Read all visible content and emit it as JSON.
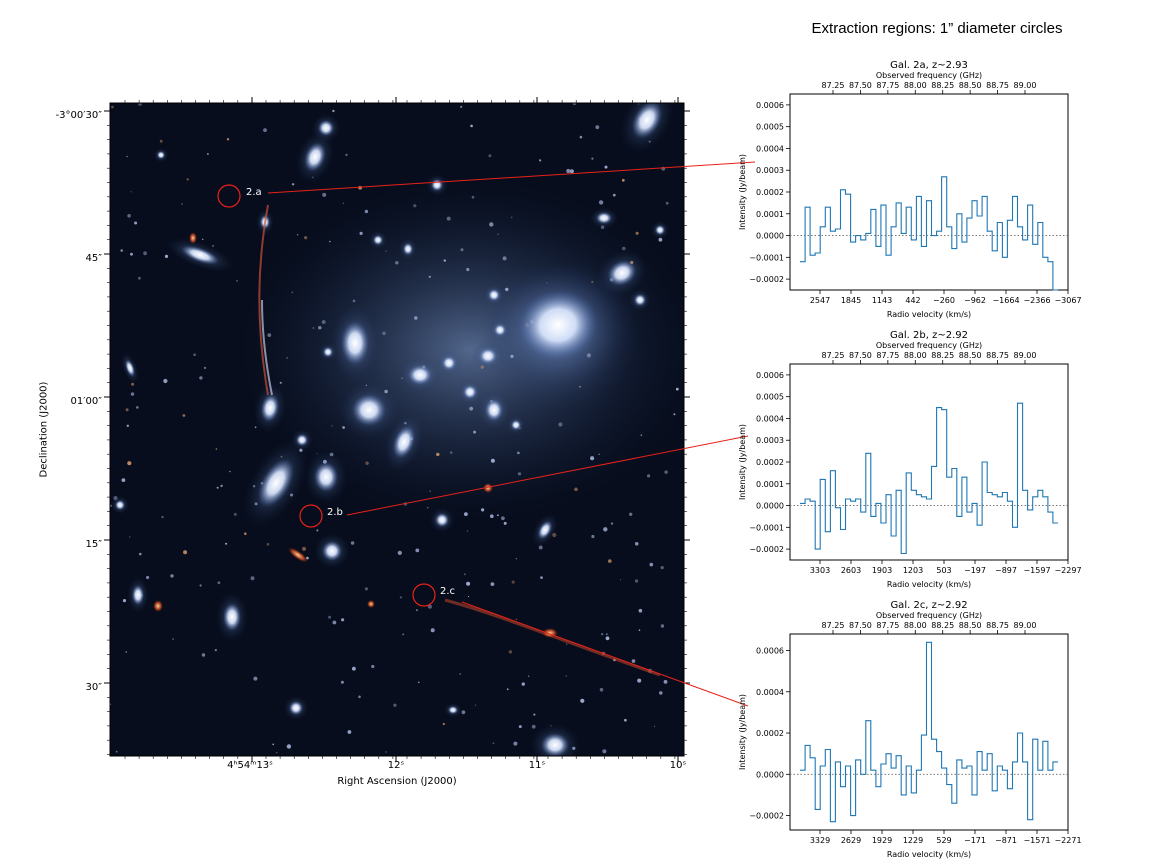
{
  "figure": {
    "title": "Extraction regions: 1” diameter circles"
  },
  "image_panel": {
    "xlabel": "Right Ascension (J2000)",
    "ylabel": "Declination (J2000)",
    "x_ticks": [
      "4ʰ54ᵐ13ˢ",
      "12ˢ",
      "11ˢ",
      "10ˢ"
    ],
    "y_ticks": [
      "-3°00′30″",
      "45″",
      "01′00″",
      "15″",
      "30″"
    ],
    "regions": [
      {
        "label": "2.a",
        "color": "#e8221a"
      },
      {
        "label": "2.b",
        "color": "#e8221a"
      },
      {
        "label": "2.c",
        "color": "#e8221a"
      }
    ]
  },
  "chart_data": [
    {
      "type": "line",
      "drawstyle": "steps",
      "title": "Gal. 2a, z~2.93",
      "top_xlabel": "Observed frequency (GHz)",
      "top_ticks": [
        "87.25",
        "87.50",
        "87.75",
        "88.00",
        "88.25",
        "88.50",
        "88.75",
        "89.00"
      ],
      "xlabel": "Radio velocity (km/s)",
      "x_ticks": [
        "2547",
        "1845",
        "1143",
        "442",
        "−260",
        "−962",
        "−1664",
        "−2366",
        "−3067"
      ],
      "ylabel": "Intensity (Jy/beam)",
      "y_ticks": [
        "0.0006",
        "0.0005",
        "0.0004",
        "0.0003",
        "0.0002",
        "0.0001",
        "0.0000",
        "−0.0001",
        "−0.0002"
      ],
      "ylim": [
        -0.00025,
        0.00065
      ],
      "zero_line": true,
      "series_color": "#1f77b4",
      "series": [
        {
          "values": [
            -0.00012,
            0.00013,
            -9e-05,
            -8e-05,
            4e-05,
            0.00013,
            2e-05,
            3e-05,
            0.00021,
            0.00019,
            -3e-05,
            0.0,
            -2e-05,
            1e-05,
            0.00012,
            -5e-05,
            0.00014,
            -9e-05,
            4e-05,
            0.00015,
            1e-05,
            0.00013,
            -2e-05,
            0.00018,
            -5e-05,
            0.00016,
            0.0,
            2e-05,
            0.00027,
            4e-05,
            -6e-05,
            0.0001,
            -3e-05,
            8e-05,
            0.00016,
            9e-05,
            0.00018,
            2e-05,
            -7e-05,
            6e-05,
            -0.0001,
            7e-05,
            0.00018,
            4e-05,
            -2e-05,
            0.00014,
            -4e-05,
            6e-05,
            -0.0001,
            -0.00012,
            -0.00025
          ]
        }
      ]
    },
    {
      "type": "line",
      "drawstyle": "steps",
      "title": "Gal. 2b, z~2.92",
      "top_xlabel": "Observed frequency (GHz)",
      "top_ticks": [
        "87.25",
        "87.50",
        "87.75",
        "88.00",
        "88.25",
        "88.50",
        "88.75",
        "89.00"
      ],
      "xlabel": "Radio velocity (km/s)",
      "x_ticks": [
        "3303",
        "2603",
        "1903",
        "1203",
        "503",
        "−197",
        "−897",
        "−1597",
        "−2297"
      ],
      "ylabel": "Intensity (Jy/beam)",
      "y_ticks": [
        "0.0006",
        "0.0005",
        "0.0004",
        "0.0003",
        "0.0002",
        "0.0001",
        "0.0000",
        "−0.0001",
        "−0.0002"
      ],
      "ylim": [
        -0.00025,
        0.00065
      ],
      "zero_line": true,
      "series_color": "#1f77b4",
      "series": [
        {
          "values": [
            1e-05,
            3e-05,
            2e-05,
            -0.0002,
            0.00012,
            -0.00012,
            0.00016,
            -1e-05,
            -0.00011,
            3e-05,
            2e-05,
            3e-05,
            -3e-05,
            0.00024,
            -5e-05,
            1e-05,
            -8e-05,
            5e-05,
            -0.00014,
            7e-05,
            -0.00022,
            0.00015,
            7e-05,
            5e-05,
            4e-05,
            3e-05,
            0.00018,
            0.00045,
            0.00044,
            0.00013,
            0.00017,
            -5e-05,
            0.00013,
            -3e-05,
            1e-05,
            -9e-05,
            0.0002,
            6e-05,
            5e-05,
            4e-05,
            6e-05,
            2e-05,
            -0.0001,
            0.00047,
            7e-05,
            -2e-05,
            4e-05,
            7e-05,
            4e-05,
            -3e-05,
            -8e-05
          ]
        }
      ]
    },
    {
      "type": "line",
      "drawstyle": "steps",
      "title": "Gal. 2c, z~2.92",
      "top_xlabel": "Observed frequency (GHz)",
      "top_ticks": [
        "87.25",
        "87.50",
        "87.75",
        "88.00",
        "88.25",
        "88.50",
        "88.75",
        "89.00"
      ],
      "xlabel": "Radio velocity (km/s)",
      "x_ticks": [
        "3329",
        "2629",
        "1929",
        "1229",
        "529",
        "−171",
        "−871",
        "−1571",
        "−2271"
      ],
      "ylabel": "Intensity (Jy/beam)",
      "y_ticks": [
        "0.0006",
        "0.0004",
        "0.0002",
        "0.0000",
        "−0.0002"
      ],
      "ylim": [
        -0.00027,
        0.00068
      ],
      "zero_line": true,
      "series_color": "#1f77b4",
      "series": [
        {
          "values": [
            2e-05,
            0.00014,
            8e-05,
            -0.00017,
            4e-05,
            0.00012,
            -0.00023,
            6e-05,
            -6e-05,
            4e-05,
            -0.0002,
            7e-05,
            0.0,
            0.00026,
            2e-05,
            -6e-05,
            5e-05,
            0.0001,
            3e-05,
            9e-05,
            -0.0001,
            4e-05,
            -9e-05,
            2e-05,
            0.00019,
            0.00064,
            0.00017,
            0.00011,
            3e-05,
            -5e-05,
            -0.00014,
            7e-05,
            3e-05,
            4e-05,
            -0.0001,
            0.00011,
            2e-05,
            0.0001,
            -8e-05,
            4e-05,
            2e-05,
            -7e-05,
            6e-05,
            0.0002,
            6e-05,
            -0.00022,
            0.00017,
            2e-05,
            0.00016,
            2e-05,
            6e-05
          ]
        }
      ]
    }
  ]
}
